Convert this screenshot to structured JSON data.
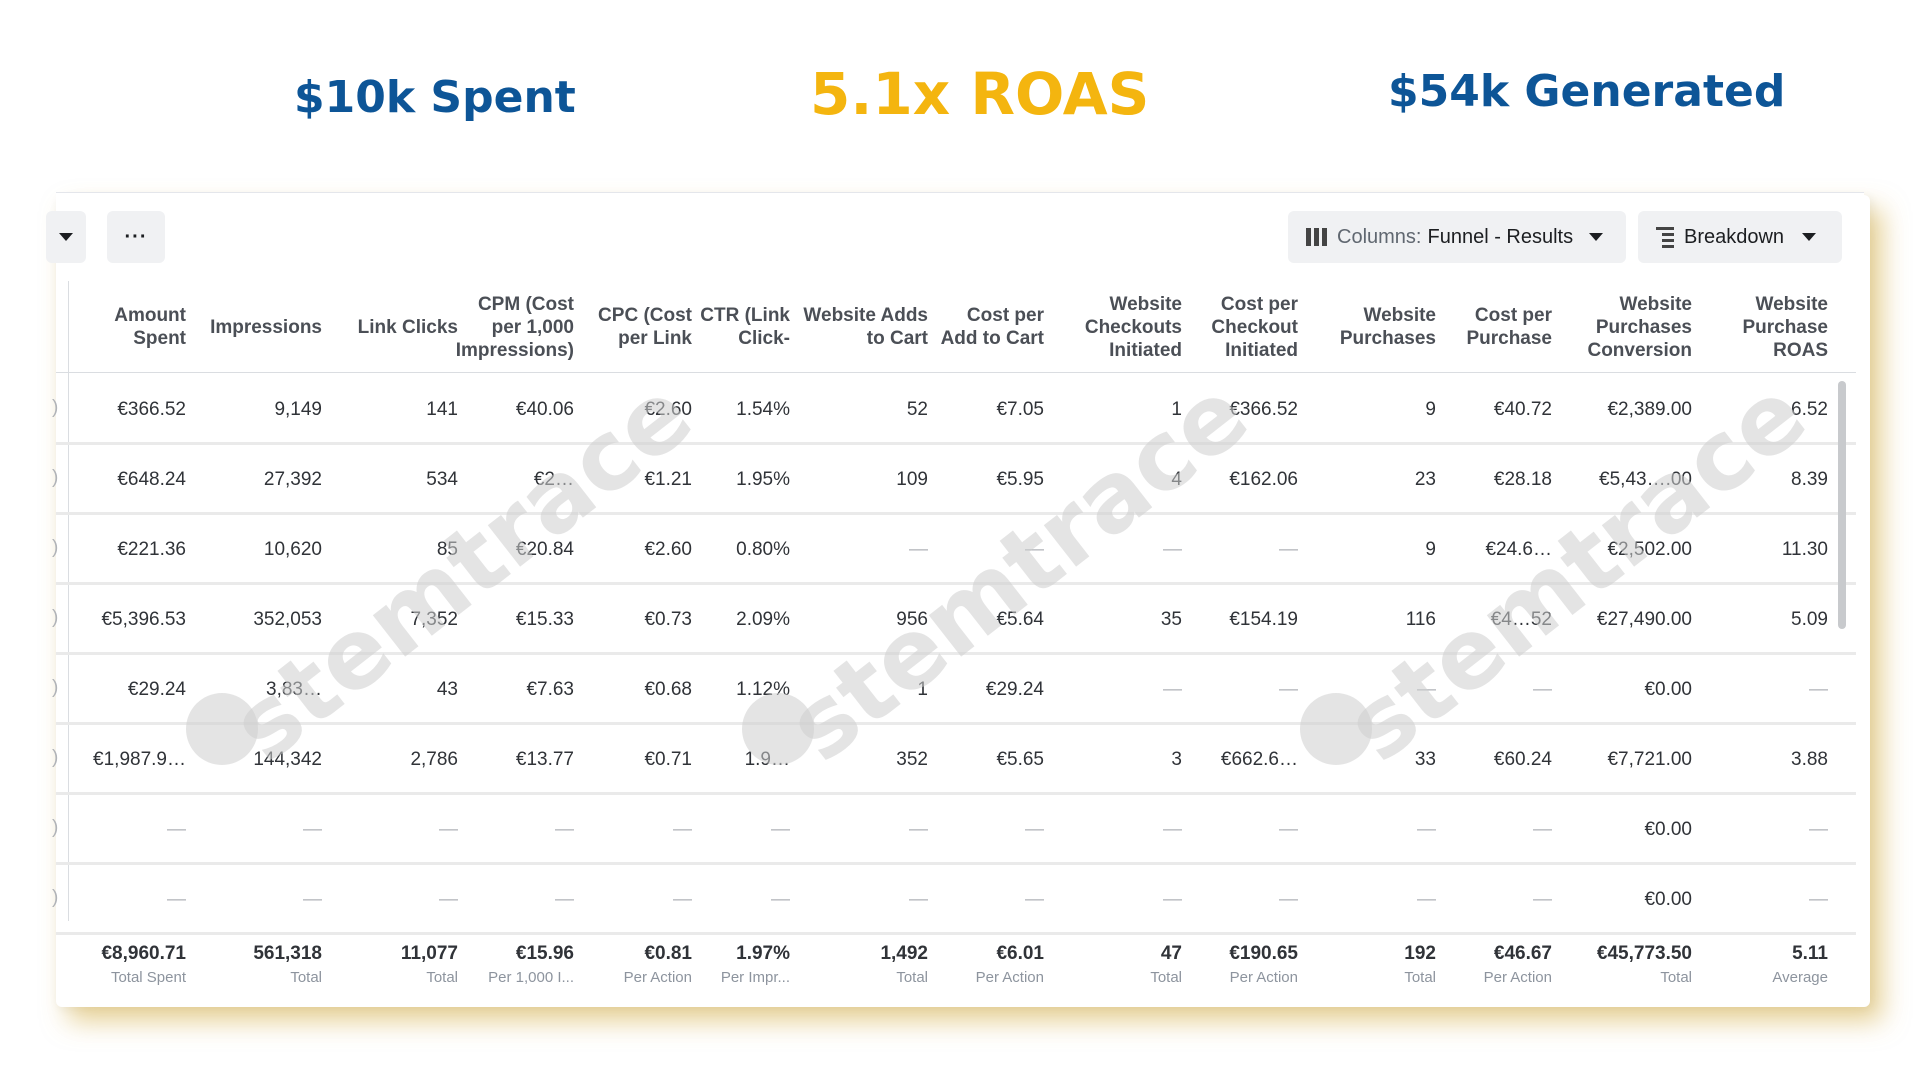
{
  "headlines": {
    "spent": "$10k Spent",
    "roas": "5.1x ROAS",
    "generated": "$54k Generated"
  },
  "toolbar": {
    "more_label": "···",
    "columns_prefix": "Columns:",
    "columns_value": "Funnel - Results",
    "breakdown_label": "Breakdown"
  },
  "table": {
    "headers": [
      "Amount Spent",
      "Impressions",
      "Link Clicks",
      "CPM (Cost per 1,000 Impressions)",
      "CPC (Cost per Link",
      "CTR (Link Click-",
      "Website Adds to Cart",
      "Cost per Add to Cart",
      "Website Checkouts Initiated",
      "Cost per Checkout Initiated",
      "Website Purchases",
      "Cost per Purchase",
      "Website Purchases Conversion",
      "Website Purchase ROAS"
    ],
    "rows": [
      [
        "€366.52",
        "9,149",
        "141",
        "€40.06",
        "€2.60",
        "1.54%",
        "52",
        "€7.05",
        "1",
        "€366.52",
        "9",
        "€40.72",
        "€2,389.00",
        "6.52"
      ],
      [
        "€648.24",
        "27,392",
        "534",
        "€2…",
        "€1.21",
        "1.95%",
        "109",
        "€5.95",
        "4",
        "€162.06",
        "23",
        "€28.18",
        "€5,43….00",
        "8.39"
      ],
      [
        "€221.36",
        "10,620",
        "85",
        "€20.84",
        "€2.60",
        "0.80%",
        "—",
        "—",
        "—",
        "—",
        "9",
        "€24.6…",
        "€2,502.00",
        "11.30"
      ],
      [
        "€5,396.53",
        "352,053",
        "7,352",
        "€15.33",
        "€0.73",
        "2.09%",
        "956",
        "€5.64",
        "35",
        "€154.19",
        "116",
        "€4…52",
        "€27,490.00",
        "5.09"
      ],
      [
        "€29.24",
        "3,83…",
        "43",
        "€7.63",
        "€0.68",
        "1.12%",
        "1",
        "€29.24",
        "—",
        "—",
        "—",
        "—",
        "€0.00",
        "—"
      ],
      [
        "€1,987.9…",
        "144,342",
        "2,786",
        "€13.77",
        "€0.71",
        "1.9…",
        "352",
        "€5.65",
        "3",
        "€662.6…",
        "33",
        "€60.24",
        "€7,721.00",
        "3.88"
      ],
      [
        "—",
        "—",
        "—",
        "—",
        "—",
        "—",
        "—",
        "—",
        "—",
        "—",
        "—",
        "—",
        "€0.00",
        "—"
      ],
      [
        "—",
        "—",
        "—",
        "—",
        "—",
        "—",
        "—",
        "—",
        "—",
        "—",
        "—",
        "—",
        "€0.00",
        "—"
      ]
    ],
    "totals": [
      {
        "value": "€8,960.71",
        "label": "Total Spent"
      },
      {
        "value": "561,318",
        "label": "Total"
      },
      {
        "value": "11,077",
        "label": "Total"
      },
      {
        "value": "€15.96",
        "label": "Per 1,000 I..."
      },
      {
        "value": "€0.81",
        "label": "Per Action"
      },
      {
        "value": "1.97%",
        "label": "Per Impr..."
      },
      {
        "value": "1,492",
        "label": "Total"
      },
      {
        "value": "€6.01",
        "label": "Per Action"
      },
      {
        "value": "47",
        "label": "Total"
      },
      {
        "value": "€190.65",
        "label": "Per Action"
      },
      {
        "value": "192",
        "label": "Total"
      },
      {
        "value": "€46.67",
        "label": "Per Action"
      },
      {
        "value": "€45,773.50",
        "label": "Total"
      },
      {
        "value": "5.11",
        "label": "Average"
      }
    ]
  },
  "watermark": {
    "text": "stemtrace"
  }
}
